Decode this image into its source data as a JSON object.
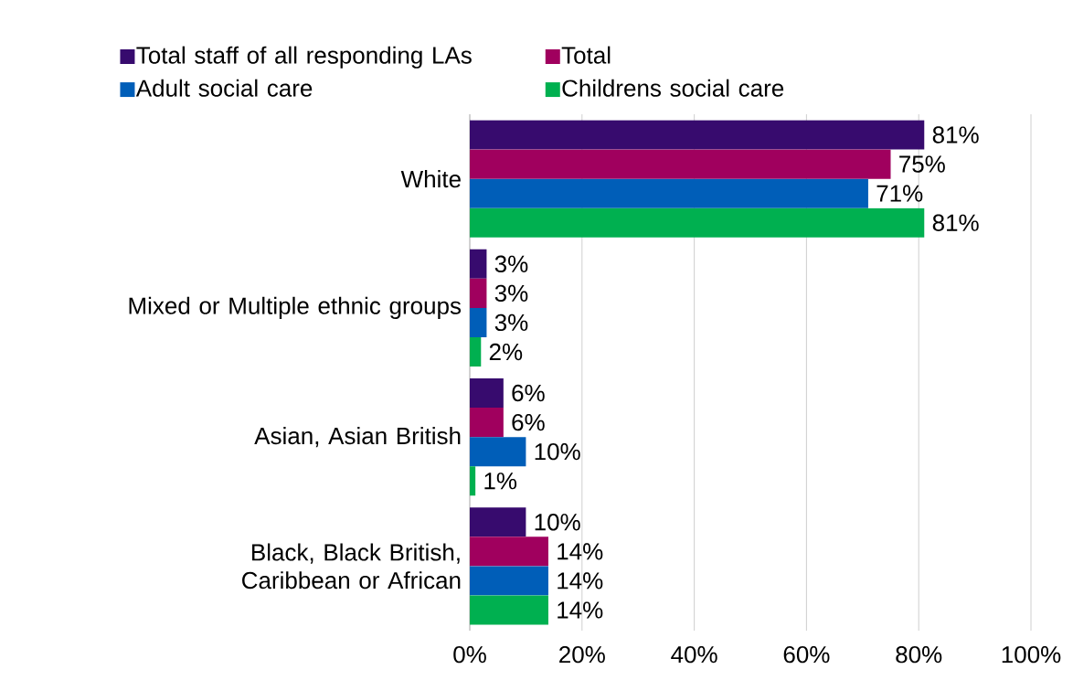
{
  "chart_data": {
    "type": "bar",
    "orientation": "horizontal",
    "categories": [
      "White",
      "Mixed or Multiple ethnic groups",
      "Asian, Asian British",
      "Black, Black British, Caribbean or African"
    ],
    "series": [
      {
        "name": "Total staff of all responding LAs",
        "color": "#370b6e",
        "values": [
          81,
          3,
          6,
          10
        ],
        "value_labels": [
          "81%",
          "3%",
          "6%",
          "10%"
        ]
      },
      {
        "name": "Total",
        "color": "#a0005e",
        "values": [
          75,
          3,
          6,
          14
        ],
        "value_labels": [
          "75%",
          "3%",
          "6%",
          "14%"
        ]
      },
      {
        "name": "Adult social care",
        "color": "#005eb8",
        "values": [
          71,
          3,
          10,
          14
        ],
        "value_labels": [
          "71%",
          "3%",
          "10%",
          "14%"
        ]
      },
      {
        "name": "Childrens social care",
        "color": "#00b050",
        "values": [
          81,
          2,
          1,
          14
        ],
        "value_labels": [
          "81%",
          "2%",
          "1%",
          "14%"
        ]
      }
    ],
    "xlim": [
      0,
      100
    ],
    "xticks": [
      {
        "value": 0,
        "label": "0%"
      },
      {
        "value": 20,
        "label": "20%"
      },
      {
        "value": 40,
        "label": "40%"
      },
      {
        "value": 60,
        "label": "60%"
      },
      {
        "value": 80,
        "label": "80%"
      },
      {
        "value": 100,
        "label": "100%"
      }
    ],
    "grid": "x",
    "legend": "top"
  }
}
